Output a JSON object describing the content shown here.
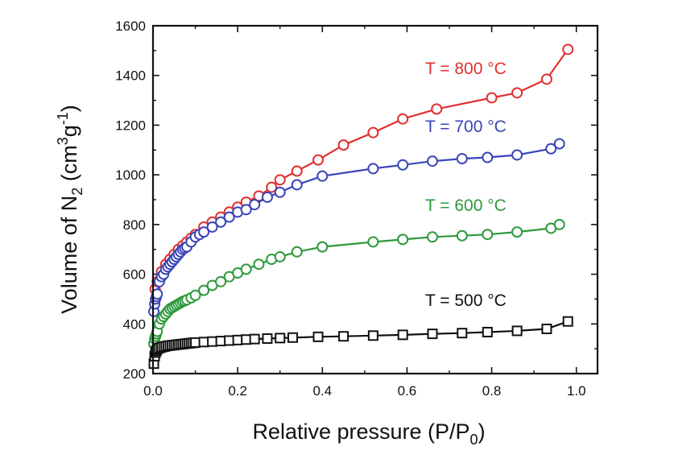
{
  "chart_data": {
    "type": "line",
    "xlabel_main": "Relative pressure (P/P",
    "xlabel_sub": "0",
    "xlabel_end": ")",
    "ylabel_main": "Volume of N",
    "ylabel_sub": "2",
    "ylabel_mid": " (cm",
    "ylabel_sup1": "3",
    "ylabel_g": "g",
    "ylabel_sup2": "-1",
    "ylabel_end": ")",
    "xlim": [
      0.0,
      1.05
    ],
    "ylim": [
      200,
      1600
    ],
    "xticks": [
      "0.0",
      "0.2",
      "0.4",
      "0.6",
      "0.8",
      "1.0"
    ],
    "yticks": [
      "200",
      "400",
      "600",
      "800",
      "1000",
      "1200",
      "1400",
      "1600"
    ],
    "grid": false,
    "series": [
      {
        "name": "T = 800 °C",
        "color": "#e03030",
        "marker": "circle",
        "x": [
          0.005,
          0.01,
          0.02,
          0.03,
          0.04,
          0.05,
          0.06,
          0.07,
          0.08,
          0.09,
          0.1,
          0.12,
          0.14,
          0.16,
          0.18,
          0.2,
          0.22,
          0.25,
          0.28,
          0.3,
          0.34,
          0.39,
          0.45,
          0.52,
          0.59,
          0.67,
          0.8,
          0.86,
          0.93,
          0.98
        ],
        "y": [
          540,
          570,
          610,
          640,
          660,
          680,
          700,
          715,
          730,
          745,
          760,
          790,
          810,
          830,
          850,
          870,
          890,
          915,
          950,
          980,
          1015,
          1060,
          1120,
          1170,
          1225,
          1265,
          1310,
          1330,
          1385,
          1505
        ]
      },
      {
        "name": "T = 700 °C",
        "color": "#3a45b8",
        "marker": "circle",
        "x": [
          0.002,
          0.004,
          0.006,
          0.008,
          0.01,
          0.015,
          0.02,
          0.025,
          0.03,
          0.035,
          0.04,
          0.045,
          0.05,
          0.055,
          0.06,
          0.065,
          0.07,
          0.075,
          0.08,
          0.09,
          0.1,
          0.11,
          0.12,
          0.14,
          0.16,
          0.18,
          0.2,
          0.22,
          0.24,
          0.27,
          0.3,
          0.34,
          0.4,
          0.52,
          0.59,
          0.66,
          0.73,
          0.79,
          0.86,
          0.94,
          0.96
        ],
        "y": [
          450,
          480,
          500,
          510,
          520,
          570,
          590,
          600,
          620,
          630,
          640,
          650,
          660,
          670,
          680,
          690,
          700,
          705,
          710,
          730,
          750,
          760,
          770,
          790,
          810,
          830,
          850,
          860,
          880,
          910,
          930,
          960,
          995,
          1025,
          1040,
          1055,
          1065,
          1070,
          1080,
          1105,
          1125
        ]
      },
      {
        "name": "T = 600 °C",
        "color": "#2e9a3c",
        "marker": "circle",
        "x": [
          0.002,
          0.004,
          0.006,
          0.008,
          0.01,
          0.015,
          0.02,
          0.025,
          0.03,
          0.035,
          0.04,
          0.045,
          0.05,
          0.055,
          0.06,
          0.065,
          0.07,
          0.075,
          0.08,
          0.09,
          0.1,
          0.12,
          0.14,
          0.16,
          0.18,
          0.2,
          0.22,
          0.25,
          0.28,
          0.3,
          0.34,
          0.4,
          0.52,
          0.59,
          0.66,
          0.73,
          0.79,
          0.86,
          0.94,
          0.96
        ],
        "y": [
          320,
          340,
          350,
          360,
          370,
          400,
          420,
          430,
          440,
          450,
          460,
          465,
          470,
          475,
          480,
          485,
          490,
          493,
          497,
          505,
          515,
          535,
          555,
          570,
          590,
          605,
          620,
          640,
          660,
          670,
          690,
          710,
          730,
          740,
          750,
          755,
          760,
          770,
          785,
          800
        ]
      },
      {
        "name": "T = 500 °C",
        "color": "#111111",
        "marker": "square",
        "x": [
          0.002,
          0.004,
          0.006,
          0.008,
          0.01,
          0.015,
          0.02,
          0.025,
          0.03,
          0.035,
          0.04,
          0.045,
          0.05,
          0.055,
          0.06,
          0.065,
          0.07,
          0.075,
          0.08,
          0.085,
          0.09,
          0.095,
          0.1,
          0.12,
          0.14,
          0.16,
          0.18,
          0.2,
          0.22,
          0.24,
          0.27,
          0.3,
          0.33,
          0.39,
          0.45,
          0.52,
          0.59,
          0.66,
          0.73,
          0.79,
          0.86,
          0.93,
          0.98
        ],
        "y": [
          240,
          270,
          285,
          292,
          298,
          303,
          306,
          308,
          310,
          312,
          313,
          314,
          315,
          316,
          317,
          318,
          319,
          320,
          321,
          322,
          323,
          324,
          325,
          327,
          329,
          331,
          333,
          335,
          337,
          339,
          341,
          343,
          345,
          348,
          350,
          353,
          356,
          360,
          363,
          367,
          372,
          380,
          410
        ]
      }
    ]
  }
}
